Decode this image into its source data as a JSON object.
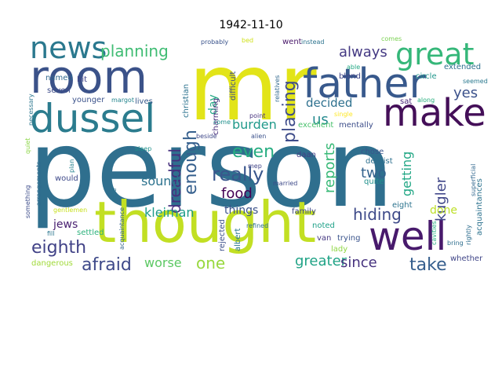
{
  "title": "1942-11-10",
  "cloud": {
    "words": [
      {
        "text": "person",
        "color": "#2f6f8e"
      },
      {
        "text": "mr",
        "color": "#e2e418"
      },
      {
        "text": "thought",
        "color": "#c2df23"
      },
      {
        "text": "room",
        "color": "#3b5289"
      },
      {
        "text": "father",
        "color": "#38598c"
      },
      {
        "text": "well",
        "color": "#481a6c"
      },
      {
        "text": "make",
        "color": "#440f58"
      },
      {
        "text": "dussel",
        "color": "#2b7c8e"
      },
      {
        "text": "news",
        "color": "#2a788e"
      },
      {
        "text": "great",
        "color": "#35b779"
      },
      {
        "text": "planning",
        "color": "#3fbc73"
      },
      {
        "text": "always",
        "color": "#443983"
      },
      {
        "text": "placing",
        "color": "#3e4c8a"
      },
      {
        "text": "yes",
        "color": "#3b518b"
      },
      {
        "text": "decided",
        "color": "#2d708e"
      },
      {
        "text": "us",
        "color": "#23898e"
      },
      {
        "text": "burden",
        "color": "#1f998a"
      },
      {
        "text": "even",
        "color": "#26ad81"
      },
      {
        "text": "really",
        "color": "#39568c"
      },
      {
        "text": "enough",
        "color": "#355f8d"
      },
      {
        "text": "dreadful",
        "color": "#46307e"
      },
      {
        "text": "day",
        "color": "#22a884"
      },
      {
        "text": "food",
        "color": "#440154"
      },
      {
        "text": "sound",
        "color": "#2c728e"
      },
      {
        "text": "reports",
        "color": "#38b977"
      },
      {
        "text": "two",
        "color": "#33628d"
      },
      {
        "text": "getting",
        "color": "#22a785"
      },
      {
        "text": "kugler",
        "color": "#404688"
      },
      {
        "text": "hiding",
        "color": "#3e4a89"
      },
      {
        "text": "done",
        "color": "#bddf26"
      },
      {
        "text": "kleiman",
        "color": "#1e9c89"
      },
      {
        "text": "things",
        "color": "#3b528b"
      },
      {
        "text": "jews",
        "color": "#481f70"
      },
      {
        "text": "eighth",
        "color": "#414287"
      },
      {
        "text": "afraid",
        "color": "#3e4989"
      },
      {
        "text": "worse",
        "color": "#5cc863"
      },
      {
        "text": "one",
        "color": "#98d83e"
      },
      {
        "text": "greater",
        "color": "#20a386"
      },
      {
        "text": "since",
        "color": "#46327e"
      },
      {
        "text": "take",
        "color": "#355e8d"
      },
      {
        "text": "christian",
        "color": "#2c728e"
      },
      {
        "text": "difficult",
        "color": "#3e4a89"
      },
      {
        "text": "charming",
        "color": "#472d7b"
      },
      {
        "text": "younger",
        "color": "#3b528b"
      },
      {
        "text": "lives",
        "color": "#38598c"
      },
      {
        "text": "named",
        "color": "#31688e"
      },
      {
        "text": "bit",
        "color": "#414487"
      },
      {
        "text": "seven",
        "color": "#3e4c8a"
      },
      {
        "text": "margot",
        "color": "#25858e"
      },
      {
        "text": "necessary",
        "color": "#2a768e"
      },
      {
        "text": "went",
        "color": "#481769"
      },
      {
        "text": "instead",
        "color": "#2c738e"
      },
      {
        "text": "blend",
        "color": "#404588"
      },
      {
        "text": "circle",
        "color": "#1f968b"
      },
      {
        "text": "extended",
        "color": "#2d708e"
      },
      {
        "text": "sat",
        "color": "#482576"
      },
      {
        "text": "along",
        "color": "#29af7f"
      },
      {
        "text": "excellent",
        "color": "#4ac16d"
      },
      {
        "text": "mentally",
        "color": "#3d4e8a"
      },
      {
        "text": "relatives",
        "color": "#31688e"
      },
      {
        "text": "single",
        "color": "#fde725"
      },
      {
        "text": "seemed",
        "color": "#2a788e"
      },
      {
        "text": "chose",
        "color": "#3a548c"
      },
      {
        "text": "dentist",
        "color": "#2d708e"
      },
      {
        "text": "quite",
        "color": "#21918c"
      },
      {
        "text": "daan",
        "color": "#433e85"
      },
      {
        "text": "would",
        "color": "#3e4989"
      },
      {
        "text": "plan",
        "color": "#26828e"
      },
      {
        "text": "gentlemen",
        "color": "#c8e020"
      },
      {
        "text": "settled",
        "color": "#2db27d"
      },
      {
        "text": "acquaintance",
        "color": "#33638d"
      },
      {
        "text": "albert",
        "color": "#2a788e"
      },
      {
        "text": "rejected",
        "color": "#3c4f8a"
      },
      {
        "text": "family",
        "color": "#3f4788"
      },
      {
        "text": "noted",
        "color": "#1fa188"
      },
      {
        "text": "eight",
        "color": "#2c738e"
      },
      {
        "text": "lady",
        "color": "#8fd744"
      },
      {
        "text": "trying",
        "color": "#3a548c"
      },
      {
        "text": "van",
        "color": "#453882"
      },
      {
        "text": "dangerous",
        "color": "#a0da39"
      },
      {
        "text": "whether",
        "color": "#404688"
      },
      {
        "text": "bring",
        "color": "#2e6e8e"
      },
      {
        "text": "superficial",
        "color": "#31678e"
      },
      {
        "text": "acquaintances",
        "color": "#2c728e"
      },
      {
        "text": "rightly",
        "color": "#2e6d8e"
      },
      {
        "text": "sleep",
        "color": "#21918c"
      },
      {
        "text": "married",
        "color": "#3e4a89"
      },
      {
        "text": "point",
        "color": "#46327e"
      },
      {
        "text": "refined",
        "color": "#2d718e"
      },
      {
        "text": "beside",
        "color": "#3f4889"
      },
      {
        "text": "come",
        "color": "#21908d"
      },
      {
        "text": "nice",
        "color": "#2c728e"
      },
      {
        "text": "cavities",
        "color": "#27ad81"
      },
      {
        "text": "fill",
        "color": "#2a768e"
      },
      {
        "text": "quiet",
        "color": "#8bd646"
      },
      {
        "text": "something",
        "color": "#3d4d8a"
      },
      {
        "text": "arrangements",
        "color": "#2f6c8e"
      },
      {
        "text": "probably",
        "color": "#3a538b"
      },
      {
        "text": "bed",
        "color": "#d0e11c"
      },
      {
        "text": "comes",
        "color": "#7ad151"
      },
      {
        "text": "able",
        "color": "#22a884"
      },
      {
        "text": "alien",
        "color": "#3b528b"
      },
      {
        "text": "mep",
        "color": "#414487"
      }
    ]
  }
}
